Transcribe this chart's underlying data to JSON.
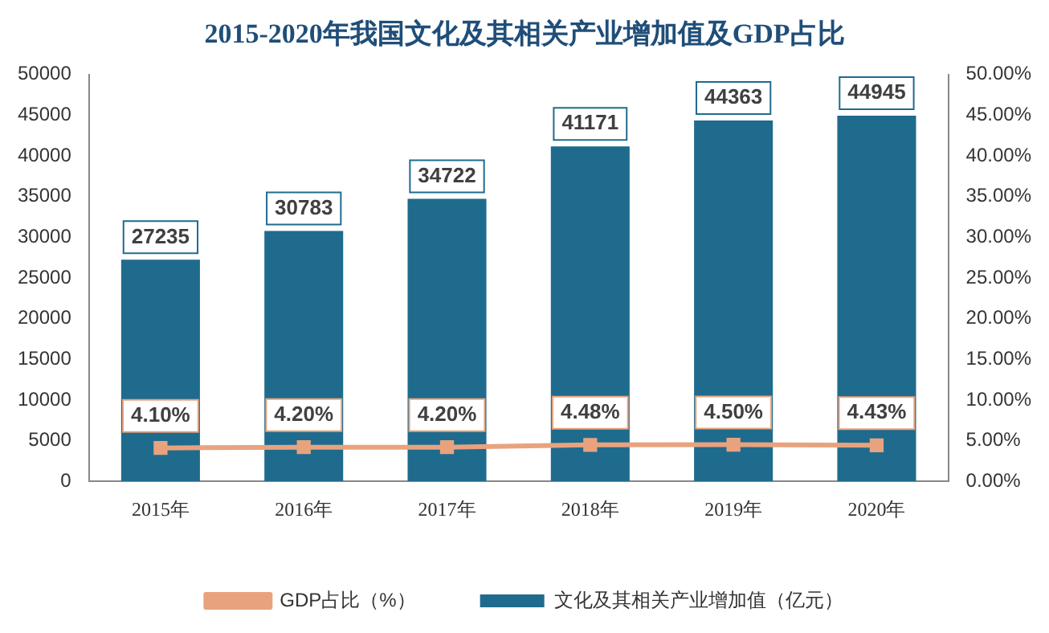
{
  "chart_data": {
    "type": "bar",
    "title": "2015-2020年我国文化及其相关产业增加值及GDP占比",
    "categories": [
      "2015年",
      "2016年",
      "2017年",
      "2018年",
      "2019年",
      "2020年"
    ],
    "series": [
      {
        "name": "文化及其相关产业增加值（亿元）",
        "color": "#1f6b8e",
        "values": [
          27235,
          30783,
          34722,
          41171,
          44363,
          44945
        ],
        "value_labels": [
          "27235",
          "30783",
          "34722",
          "41171",
          "44363",
          "44945"
        ]
      },
      {
        "name": "GDP占比（%）",
        "type": "line",
        "axis": "y2",
        "color": "#e8a37e",
        "marker": "square",
        "values": [
          4.1,
          4.2,
          4.2,
          4.48,
          4.5,
          4.43
        ],
        "value_labels": [
          "4.10%",
          "4.20%",
          "4.20%",
          "4.48%",
          "4.50%",
          "4.43%"
        ]
      }
    ],
    "ylim": [
      0,
      50000
    ],
    "yticks": [
      0,
      5000,
      10000,
      15000,
      20000,
      25000,
      30000,
      35000,
      40000,
      45000,
      50000
    ],
    "y2lim": [
      0,
      50
    ],
    "y2ticks": [
      {
        "value": 0,
        "label": "0.00%"
      },
      {
        "value": 5,
        "label": "5.00%"
      },
      {
        "value": 10,
        "label": "10.00%"
      },
      {
        "value": 15,
        "label": "15.00%"
      },
      {
        "value": 20,
        "label": "20.00%"
      },
      {
        "value": 25,
        "label": "25.00%"
      },
      {
        "value": 30,
        "label": "30.00%"
      },
      {
        "value": 35,
        "label": "35.00%"
      },
      {
        "value": 40,
        "label": "40.00%"
      },
      {
        "value": 45,
        "label": "45.00%"
      },
      {
        "value": 50,
        "label": "50.00%"
      }
    ],
    "grid": false,
    "legend": "bottom"
  }
}
